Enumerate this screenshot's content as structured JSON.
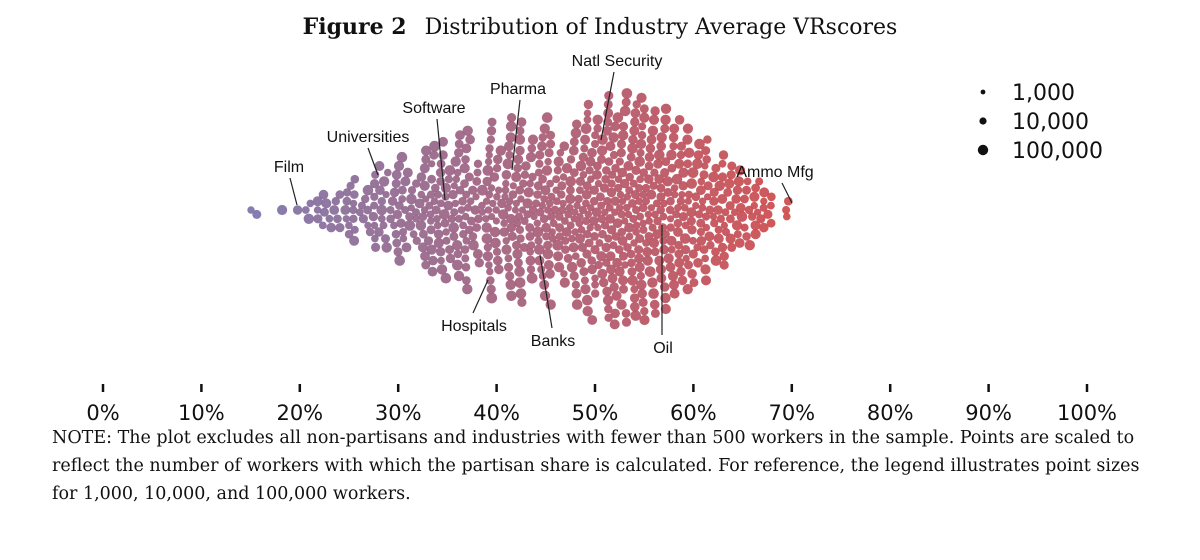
{
  "figure": {
    "number": "Figure 2",
    "title": "Distribution of Industry Average VRscores"
  },
  "chart_data": {
    "type": "scatter",
    "subtype": "beeswarm",
    "x_axis": {
      "range": [
        0,
        100
      ],
      "ticks": [
        0,
        10,
        20,
        30,
        40,
        50,
        60,
        70,
        80,
        90,
        100
      ],
      "tick_labels": [
        "0%",
        "10%",
        "20%",
        "30%",
        "40%",
        "50%",
        "60%",
        "70%",
        "80%",
        "90%",
        "100%"
      ]
    },
    "point_size_meaning": "number of workers",
    "color_scale": {
      "low": "#7b73a8",
      "high": "#d04848"
    },
    "distribution": {
      "min": 15,
      "max": 71,
      "peaks": [
        {
          "x": 15,
          "density": 0.02
        },
        {
          "x": 20,
          "density": 0.08
        },
        {
          "x": 25,
          "density": 0.25
        },
        {
          "x": 30,
          "density": 0.45
        },
        {
          "x": 35,
          "density": 0.6
        },
        {
          "x": 40,
          "density": 0.78
        },
        {
          "x": 45,
          "density": 0.8
        },
        {
          "x": 50,
          "density": 0.95
        },
        {
          "x": 53,
          "density": 1.0
        },
        {
          "x": 57,
          "density": 0.9
        },
        {
          "x": 60,
          "density": 0.7
        },
        {
          "x": 65,
          "density": 0.35
        },
        {
          "x": 70,
          "density": 0.06
        }
      ]
    },
    "annotations": [
      {
        "label": "Film",
        "x": 20
      },
      {
        "label": "Universities",
        "x": 27.5
      },
      {
        "label": "Software",
        "x": 35
      },
      {
        "label": "Pharma",
        "x": 41.5
      },
      {
        "label": "Natl Security",
        "x": 51
      },
      {
        "label": "Ammo Mfg",
        "x": 70
      },
      {
        "label": "Hospitals",
        "x": 39
      },
      {
        "label": "Banks",
        "x": 45
      },
      {
        "label": "Oil",
        "x": 57
      }
    ],
    "legend": {
      "entries": [
        {
          "label": "1,000",
          "workers": 1000
        },
        {
          "label": "10,000",
          "workers": 10000
        },
        {
          "label": "100,000",
          "workers": 100000
        }
      ],
      "position": "top-right"
    }
  },
  "note": "NOTE: The plot excludes all non-partisans and industries with fewer than 500 workers in the sample. Points are scaled to reflect the number of workers with which the partisan share is calculated. For reference, the legend illustrates point sizes for 1,000, 10,000, and 100,000 workers."
}
